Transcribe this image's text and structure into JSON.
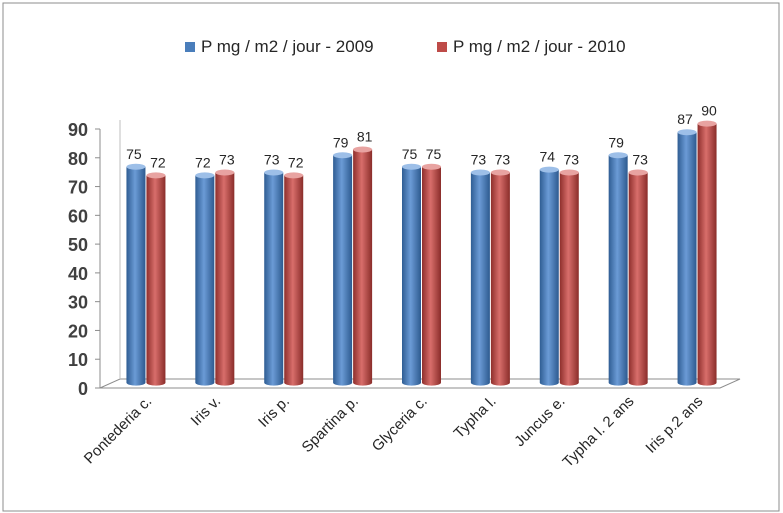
{
  "chart_data": {
    "type": "bar",
    "title": "",
    "xlabel": "",
    "ylabel": "",
    "categories": [
      "Pontederia c.",
      "Iris v.",
      "Iris p.",
      "Spartina p.",
      "Glyceria c.",
      "Typha l.",
      "Juncus e.",
      "Typha l. 2 ans",
      "Iris p.2 ans"
    ],
    "series": [
      {
        "name": "P mg / m2 / jour - 2009",
        "color": "#4a7ebb",
        "values": [
          75,
          72,
          73,
          79,
          75,
          73,
          74,
          79,
          87
        ]
      },
      {
        "name": "P mg / m2 / jour - 2010",
        "color": "#be4b48",
        "values": [
          72,
          73,
          72,
          81,
          75,
          73,
          73,
          73,
          90
        ]
      }
    ],
    "ylim": [
      0,
      90
    ],
    "yticks": [
      "0",
      "10",
      "20",
      "30",
      "40",
      "50",
      "60",
      "70",
      "80",
      "90"
    ],
    "grid": false,
    "legend": "top",
    "style": "3d-cylinder"
  }
}
